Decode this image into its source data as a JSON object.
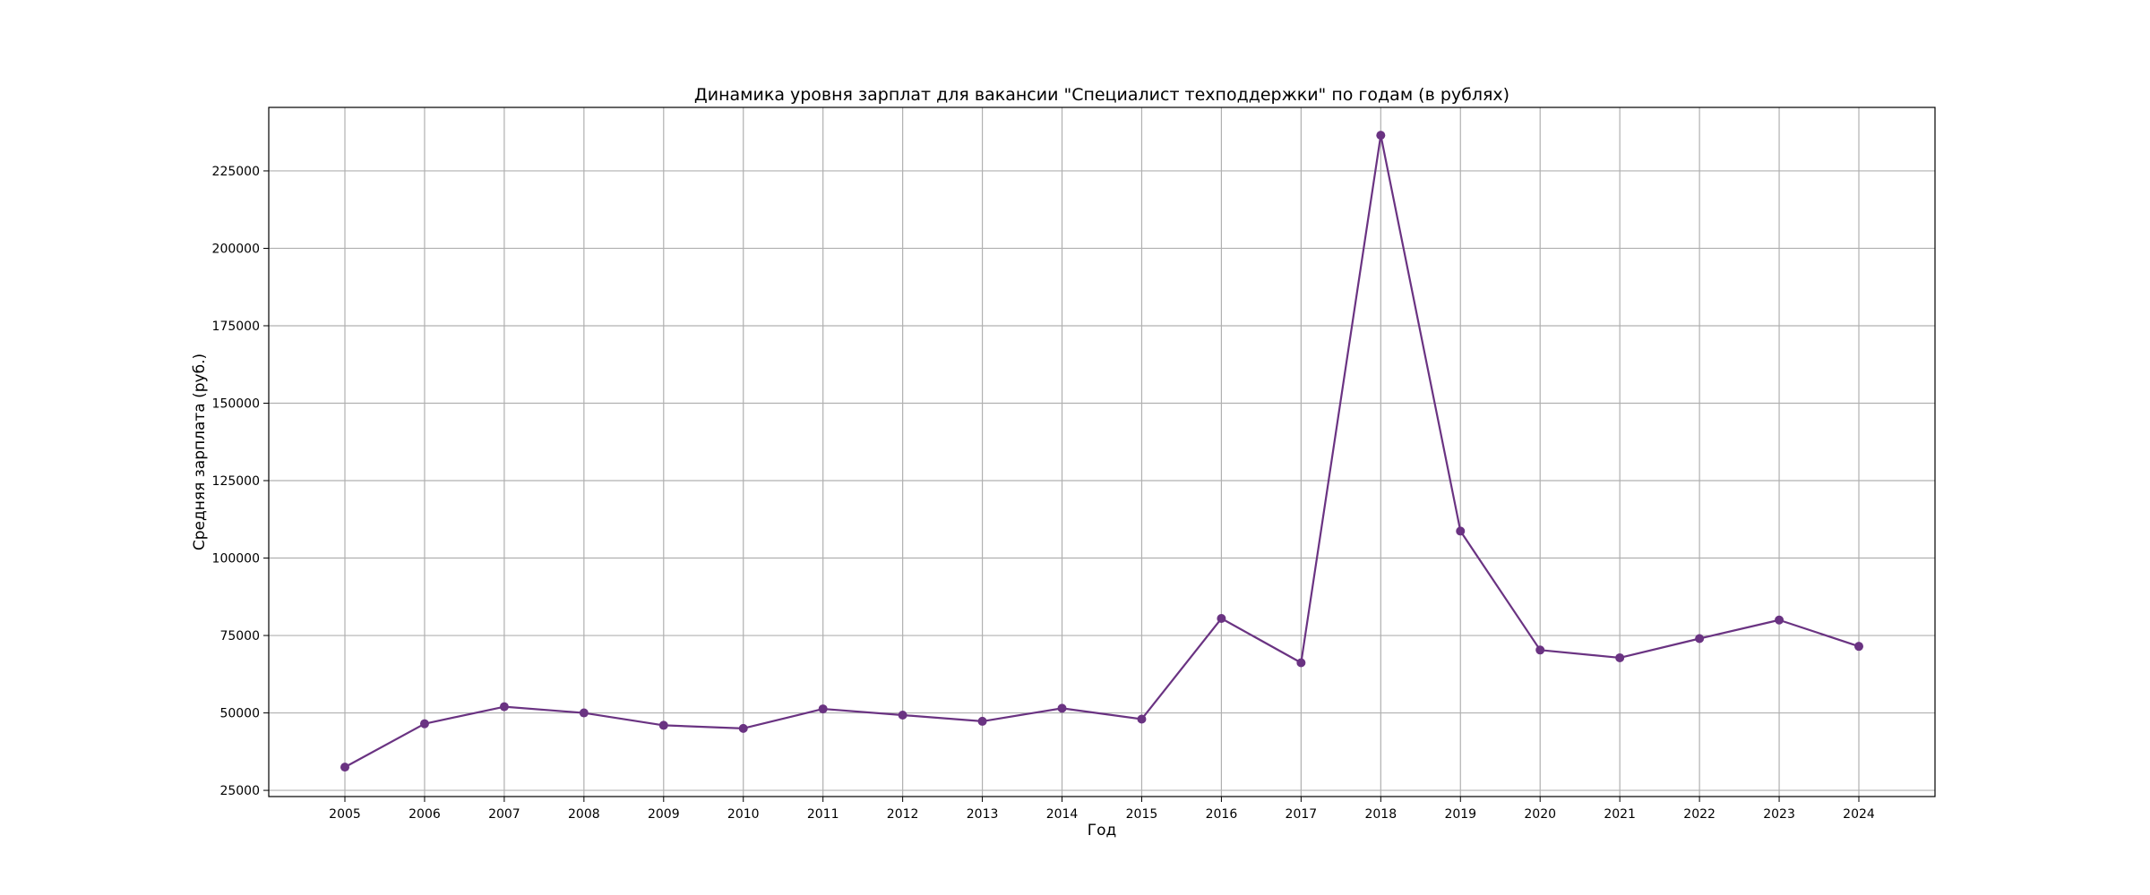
{
  "chart_data": {
    "type": "line",
    "title": "Динамика уровня зарплат для вакансии \"Специалист техподдержки\" по годам (в рублях)",
    "xlabel": "Год",
    "ylabel": "Средняя зарплата (руб.)",
    "x": [
      "2005",
      "2006",
      "2007",
      "2008",
      "2009",
      "2010",
      "2011",
      "2012",
      "2013",
      "2014",
      "2015",
      "2016",
      "2017",
      "2018",
      "2019",
      "2020",
      "2021",
      "2022",
      "2023",
      "2024"
    ],
    "series": [
      {
        "values": [
          32500,
          46500,
          52000,
          50000,
          46000,
          45000,
          51300,
          49300,
          47300,
          51500,
          48000,
          80500,
          66200,
          236500,
          108700,
          70300,
          67800,
          74000,
          80000,
          71500
        ],
        "color": "#6a3382",
        "marker": "circle"
      }
    ],
    "ylim": [
      23000,
      245500
    ],
    "yticks": [
      25000,
      50000,
      75000,
      100000,
      125000,
      150000,
      175000,
      200000,
      225000
    ],
    "ytick_labels": [
      "25000",
      "50000",
      "75000",
      "100000",
      "125000",
      "150000",
      "175000",
      "200000",
      "225000"
    ],
    "grid": true,
    "legend": "none"
  }
}
